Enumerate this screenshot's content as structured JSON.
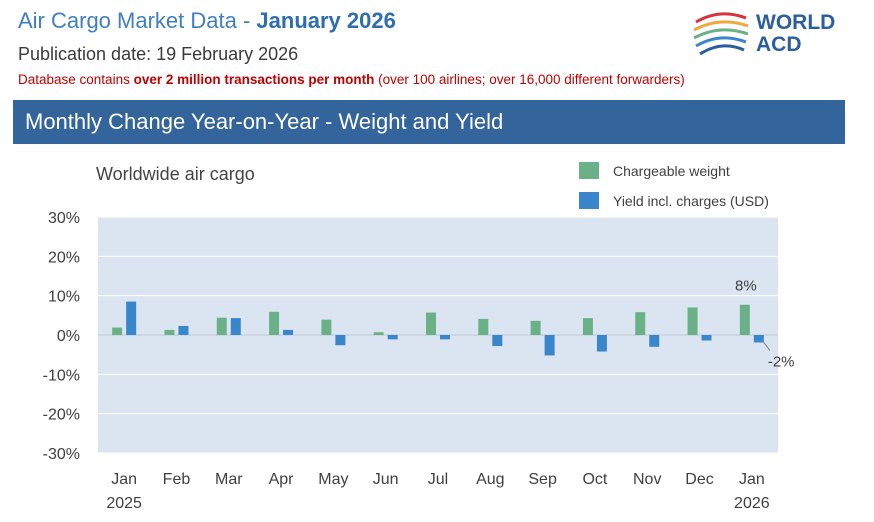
{
  "header": {
    "title_prefix": "Air Cargo Market Data - ",
    "title_month": "January 2026",
    "publication_date": "Publication date: 19 February 2026",
    "db_note_pre": "Database contains ",
    "db_note_bold": "over 2 million transactions per month",
    "db_note_post": "  (over 100 airlines; over 16,000 different forwarders)",
    "logo_text_line1": "WORLD",
    "logo_text_line2": "ACD"
  },
  "banner": {
    "title": "Monthly Change Year-on-Year - Weight and Yield"
  },
  "colors": {
    "weight": "#6ab187",
    "yield": "#3a86cc",
    "plot_bg": "#dbe5f1",
    "banner": "#33649b",
    "logo_arcs": [
      "#d8323c",
      "#f0a93b",
      "#6ab187",
      "#3a86cc",
      "#2b5e9e"
    ]
  },
  "chart_data": {
    "type": "bar",
    "title": "Worldwide air cargo",
    "categories": [
      "Jan",
      "Feb",
      "Mar",
      "Apr",
      "May",
      "Jun",
      "Jul",
      "Aug",
      "Sep",
      "Oct",
      "Nov",
      "Dec",
      "Jan"
    ],
    "category_sublabels": [
      "2025",
      "",
      "",
      "",
      "",
      "",
      "",
      "",
      "",
      "",
      "",
      "",
      "2026"
    ],
    "series": [
      {
        "name": "Chargeable weight",
        "values": [
          1.9,
          1.3,
          4.4,
          5.9,
          3.9,
          0.7,
          5.7,
          4.1,
          3.6,
          4.3,
          5.8,
          7.0,
          7.7
        ]
      },
      {
        "name": "Yield incl. charges (USD)",
        "values": [
          8.5,
          2.3,
          4.3,
          1.3,
          -2.6,
          -1.1,
          -1.1,
          -2.8,
          -5.2,
          -4.2,
          -3.0,
          -1.4,
          -1.9
        ]
      }
    ],
    "ylim": [
      -30,
      30
    ],
    "yticks": [
      30,
      20,
      10,
      0,
      -10,
      -20,
      -30
    ],
    "ytick_format": "percent",
    "legend_position": "top-right",
    "annotations": [
      {
        "category_index": 12,
        "series": 0,
        "text": "8%"
      },
      {
        "category_index": 12,
        "series": 1,
        "text": "-2%"
      }
    ]
  }
}
